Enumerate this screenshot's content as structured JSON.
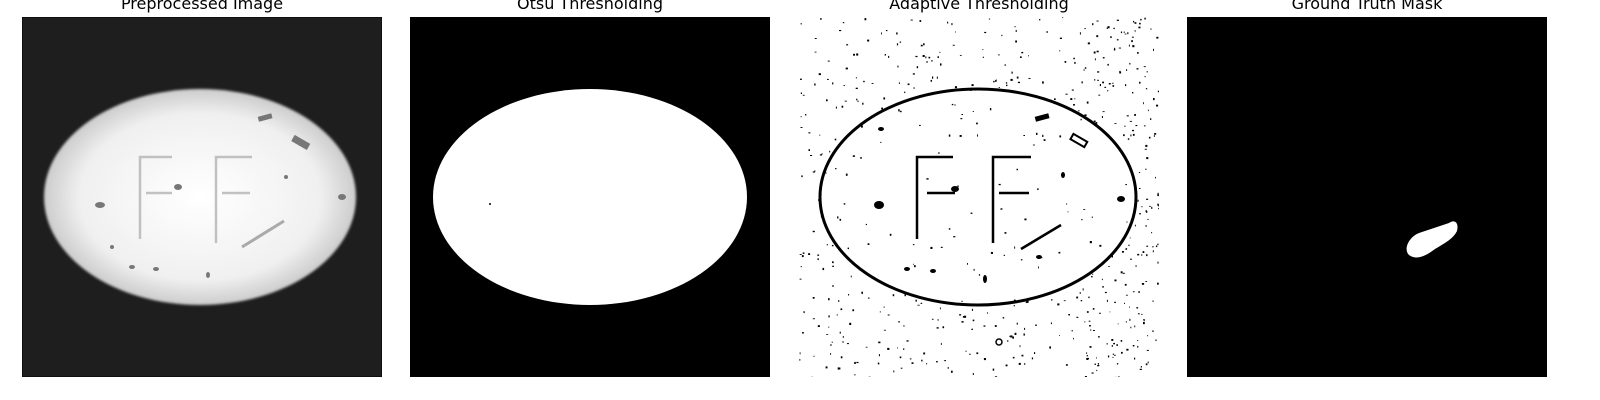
{
  "panels": [
    {
      "title": "Preprocessed Image"
    },
    {
      "title": "Otsu Thresholding"
    },
    {
      "title": "Adaptive Thresholding"
    },
    {
      "title": "Ground Truth Mask"
    }
  ]
}
